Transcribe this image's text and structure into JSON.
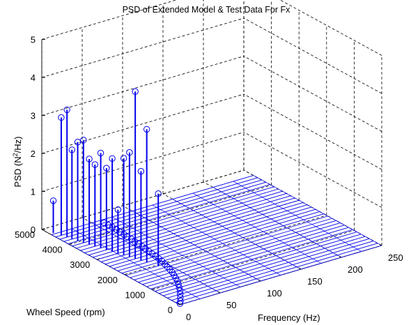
{
  "chart_data": {
    "type": "stem3-with-mesh",
    "title": "PSD of Extended Model & Test Data For Fx",
    "xlabel": "Frequency (Hz)",
    "ylabel": "Wheel Speed (rpm)",
    "zlabel_main": "PSD (N",
    "zlabel_sup": "2",
    "zlabel_end": "/Hz)",
    "xlim": [
      0,
      250
    ],
    "ylim": [
      0,
      5000
    ],
    "zlim": [
      0,
      5
    ],
    "x_ticks": [
      "0",
      "50",
      "100",
      "150",
      "200",
      "250"
    ],
    "y_ticks": [
      "0",
      "1000",
      "2000",
      "3000",
      "4000",
      "5000"
    ],
    "z_ticks": [
      "0",
      "1",
      "2",
      "3",
      "4",
      "5"
    ],
    "grid": true,
    "line_color": "#0000ee",
    "grid_color": "#000000",
    "mesh": {
      "x_values": [
        0,
        25,
        50,
        75,
        100,
        125,
        150,
        175,
        200,
        225,
        250
      ],
      "rpm_rows": [
        0,
        150,
        300,
        450,
        600,
        750,
        900,
        1050,
        1200,
        1350,
        1500,
        1650,
        1800,
        1950,
        2100,
        2250,
        2400,
        2550,
        2700,
        2850,
        3000,
        3150,
        3300,
        3450,
        3600,
        3750,
        3900,
        4050,
        4200,
        4350,
        4500,
        4650
      ]
    },
    "test_data_stems": [
      {
        "freq": 4,
        "rpm": 4700,
        "psd": 0.85
      },
      {
        "freq": 7,
        "rpm": 4500,
        "psd": 3.1
      },
      {
        "freq": 9,
        "rpm": 4350,
        "psd": 3.35
      },
      {
        "freq": 10,
        "rpm": 4200,
        "psd": 2.35
      },
      {
        "freq": 12,
        "rpm": 4050,
        "psd": 2.6
      },
      {
        "freq": 14,
        "rpm": 3900,
        "psd": 2.7
      },
      {
        "freq": 16,
        "rpm": 3750,
        "psd": 2.25
      },
      {
        "freq": 18,
        "rpm": 3600,
        "psd": 2.15
      },
      {
        "freq": 20,
        "rpm": 3450,
        "psd": 2.5
      },
      {
        "freq": 22,
        "rpm": 3300,
        "psd": 2.15
      },
      {
        "freq": 24,
        "rpm": 3150,
        "psd": 2.45
      },
      {
        "freq": 26,
        "rpm": 3000,
        "psd": 1.15
      },
      {
        "freq": 28,
        "rpm": 2850,
        "psd": 2.55
      },
      {
        "freq": 30,
        "rpm": 2700,
        "psd": 2.75
      },
      {
        "freq": 32,
        "rpm": 2550,
        "psd": 4.4
      },
      {
        "freq": 34,
        "rpm": 2400,
        "psd": 2.35
      },
      {
        "freq": 36,
        "rpm": 2250,
        "psd": 3.5
      },
      {
        "freq": 40,
        "rpm": 1950,
        "psd": 1.9
      }
    ],
    "model_markers": [
      {
        "freq": 60,
        "rpm": 4500,
        "psd": 0
      },
      {
        "freq": 60,
        "rpm": 4350,
        "psd": 0
      },
      {
        "freq": 60,
        "rpm": 4200,
        "psd": 0
      },
      {
        "freq": 60,
        "rpm": 4050,
        "psd": 0
      },
      {
        "freq": 59,
        "rpm": 3900,
        "psd": 0
      },
      {
        "freq": 59,
        "rpm": 3750,
        "psd": 0
      },
      {
        "freq": 58,
        "rpm": 3600,
        "psd": 0
      },
      {
        "freq": 58,
        "rpm": 3450,
        "psd": 0
      },
      {
        "freq": 57,
        "rpm": 3300,
        "psd": 0
      },
      {
        "freq": 57,
        "rpm": 3150,
        "psd": 0
      },
      {
        "freq": 56,
        "rpm": 3000,
        "psd": 0
      },
      {
        "freq": 55,
        "rpm": 2850,
        "psd": 0
      },
      {
        "freq": 54,
        "rpm": 2700,
        "psd": 0
      },
      {
        "freq": 53,
        "rpm": 2550,
        "psd": 0
      },
      {
        "freq": 52,
        "rpm": 2400,
        "psd": 0
      },
      {
        "freq": 51,
        "rpm": 2250,
        "psd": 0
      },
      {
        "freq": 50,
        "rpm": 2100,
        "psd": 0
      },
      {
        "freq": 48,
        "rpm": 1950,
        "psd": 0
      },
      {
        "freq": 46,
        "rpm": 1800,
        "psd": 0
      },
      {
        "freq": 44,
        "rpm": 1650,
        "psd": 0
      },
      {
        "freq": 42,
        "rpm": 1500,
        "psd": 0
      },
      {
        "freq": 39,
        "rpm": 1350,
        "psd": 0
      },
      {
        "freq": 36,
        "rpm": 1200,
        "psd": 0
      },
      {
        "freq": 33,
        "rpm": 1050,
        "psd": 0
      },
      {
        "freq": 29,
        "rpm": 900,
        "psd": 0
      },
      {
        "freq": 25,
        "rpm": 750,
        "psd": 0
      },
      {
        "freq": 21,
        "rpm": 600,
        "psd": 0
      },
      {
        "freq": 16,
        "rpm": 450,
        "psd": 0
      },
      {
        "freq": 11,
        "rpm": 300,
        "psd": 0
      },
      {
        "freq": 6,
        "rpm": 150,
        "psd": 0
      },
      {
        "freq": 2,
        "rpm": 50,
        "psd": 0
      }
    ]
  }
}
